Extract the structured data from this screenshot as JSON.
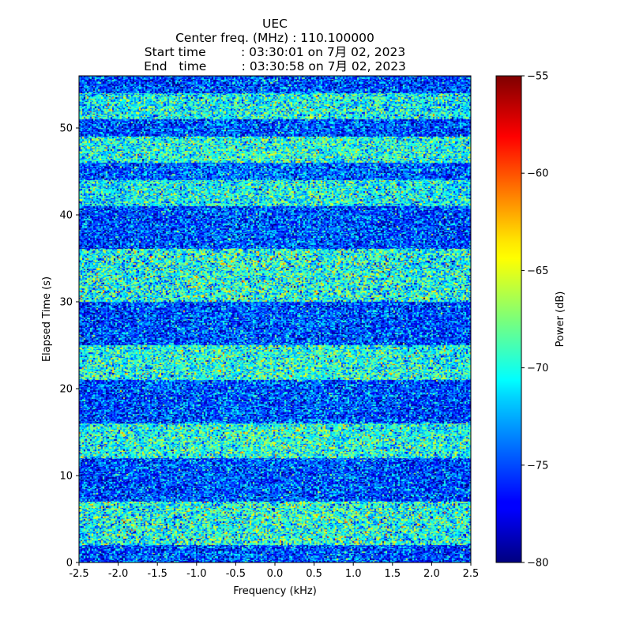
{
  "chart_data": {
    "type": "heatmap",
    "title_lines": [
      "UEC",
      "Center freq. (MHz) : 110.100000",
      "Start time         : 03:30:01 on 7月 02, 2023",
      "End   time         : 03:30:58 on 7月 02, 2023"
    ],
    "xlabel": "Frequency (kHz)",
    "ylabel": "Elapsed Time (s)",
    "xlim": [
      -2.5,
      2.5
    ],
    "ylim": [
      0,
      56
    ],
    "x_ticks": [
      -2.5,
      -2.0,
      -1.5,
      -1.0,
      -0.5,
      0.0,
      0.5,
      1.0,
      1.5,
      2.0,
      2.5
    ],
    "x_tick_labels": [
      "-2.5",
      "-2.0",
      "-1.5",
      "-1.0",
      "-0.5",
      "0.0",
      "0.5",
      "1.0",
      "1.5",
      "2.0",
      "2.5"
    ],
    "y_ticks": [
      0,
      10,
      20,
      30,
      40,
      50
    ],
    "y_tick_labels": [
      "0",
      "10",
      "20",
      "30",
      "40",
      "50"
    ],
    "colorbar": {
      "label": "Power (dB)",
      "colormap": "jet",
      "range": [
        -80,
        -55
      ],
      "ticks": [
        -80,
        -75,
        -70,
        -65,
        -60,
        -55
      ],
      "tick_labels": [
        "−80",
        "−75",
        "−70",
        "−65",
        "−60",
        "−55"
      ]
    },
    "bands_note": "Noise power (dB) per time segment; mean level and spread estimated from colors",
    "bands": [
      {
        "t0": 0,
        "t1": 2,
        "mean": -75.5,
        "spread": 3.0
      },
      {
        "t0": 2,
        "t1": 7,
        "mean": -70.5,
        "spread": 3.5
      },
      {
        "t0": 7,
        "t1": 12,
        "mean": -75.5,
        "spread": 3.0
      },
      {
        "t0": 12,
        "t1": 16,
        "mean": -70.5,
        "spread": 3.2
      },
      {
        "t0": 16,
        "t1": 21,
        "mean": -75.5,
        "spread": 3.0
      },
      {
        "t0": 21,
        "t1": 25,
        "mean": -70.5,
        "spread": 3.2
      },
      {
        "t0": 25,
        "t1": 30,
        "mean": -75.5,
        "spread": 3.0
      },
      {
        "t0": 30,
        "t1": 36,
        "mean": -70.5,
        "spread": 3.5
      },
      {
        "t0": 36,
        "t1": 41,
        "mean": -75.5,
        "spread": 3.0
      },
      {
        "t0": 41,
        "t1": 44,
        "mean": -71.0,
        "spread": 3.2
      },
      {
        "t0": 44,
        "t1": 46,
        "mean": -75.0,
        "spread": 3.0
      },
      {
        "t0": 46,
        "t1": 49,
        "mean": -70.5,
        "spread": 3.2
      },
      {
        "t0": 49,
        "t1": 51,
        "mean": -75.5,
        "spread": 3.0
      },
      {
        "t0": 51,
        "t1": 54,
        "mean": -71.0,
        "spread": 3.2
      },
      {
        "t0": 54,
        "t1": 56,
        "mean": -75.5,
        "spread": 3.0
      }
    ]
  }
}
